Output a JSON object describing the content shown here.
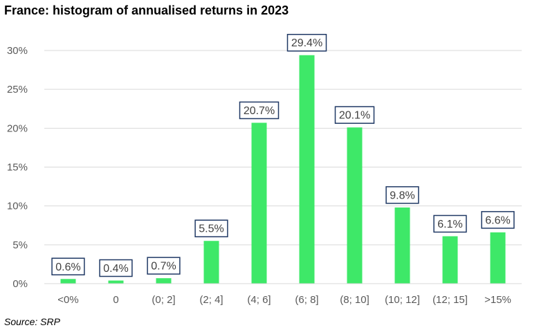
{
  "chart_data": {
    "type": "bar",
    "title": "France: histogram of annualised returns in 2023",
    "categories": [
      "<0%",
      "0",
      "(0; 2]",
      "(2; 4]",
      "(4; 6]",
      "(6; 8]",
      "(8; 10]",
      "(10; 12]",
      "(12; 15]",
      ">15%"
    ],
    "values": [
      0.6,
      0.4,
      0.7,
      5.5,
      20.7,
      29.4,
      20.1,
      9.8,
      6.1,
      6.6
    ],
    "data_labels": [
      "0.6%",
      "0.4%",
      "0.7%",
      "5.5%",
      "20.7%",
      "29.4%",
      "20.1%",
      "9.8%",
      "6.1%",
      "6.6%"
    ],
    "y_ticks": [
      0,
      5,
      10,
      15,
      20,
      25,
      30
    ],
    "y_tick_labels": [
      "0%",
      "5%",
      "10%",
      "15%",
      "20%",
      "25%",
      "30%"
    ],
    "ylim": [
      0,
      30
    ],
    "xlabel": "",
    "ylabel": "",
    "grid": true,
    "legend": "none",
    "colors": {
      "bar": "#3ee868",
      "grid": "#d9d9d9",
      "label_border": "#1f3864",
      "text": "#595959"
    }
  },
  "source": "Source: SRP"
}
